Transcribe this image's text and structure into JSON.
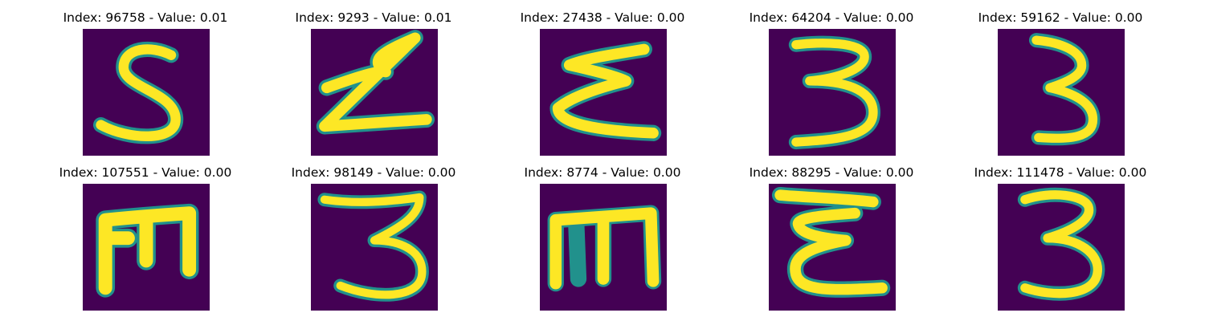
{
  "colors": {
    "background": "#440154",
    "glyph": "#fde725",
    "edge": "#21918c"
  },
  "panels": [
    {
      "title": "Index: 96758 - Value: 0.01",
      "glyph": "S"
    },
    {
      "title": "Index: 9293 - Value: 0.01",
      "glyph": "Z"
    },
    {
      "title": "Index: 27438 - Value: 0.00",
      "glyph": "Σ"
    },
    {
      "title": "Index: 64204 - Value: 0.00",
      "glyph": "3"
    },
    {
      "title": "Index: 59162 - Value: 0.00",
      "glyph": "3"
    },
    {
      "title": "Index: 107551 - Value: 0.00",
      "glyph": "E"
    },
    {
      "title": "Index: 98149 - Value: 0.00",
      "glyph": "3"
    },
    {
      "title": "Index: 8774 - Value: 0.00",
      "glyph": "m"
    },
    {
      "title": "Index: 88295 - Value: 0.00",
      "glyph": "ε"
    },
    {
      "title": "Index: 111478 - Value: 0.00",
      "glyph": "3"
    }
  ]
}
